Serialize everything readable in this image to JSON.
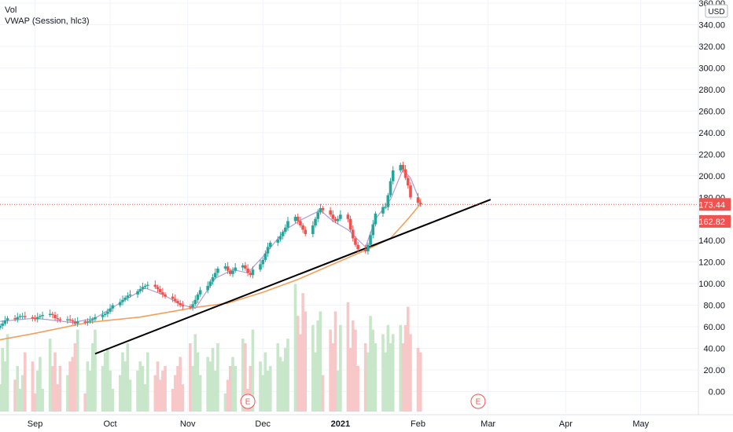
{
  "legend": {
    "volume_label": "Vol",
    "vwap_label": "VWAP (Session, hlc3)"
  },
  "colors": {
    "up": "#26a69a",
    "down": "#ef5350",
    "vol_up": "#c8e6c9",
    "vol_down": "#f8c8c8",
    "vwap": "#b39ddb",
    "ma": "#f5a05a",
    "trendline": "#000000",
    "price_line": "#ef5350",
    "grid": "#f0f3fa",
    "axis_text": "#131722"
  },
  "axis": {
    "currency": "USD",
    "y_ticks": [
      "0.00",
      "20.00",
      "40.00",
      "60.00",
      "80.00",
      "100.00",
      "120.00",
      "140.00",
      "160.00",
      "180.00",
      "200.00",
      "220.00",
      "240.00",
      "260.00",
      "280.00",
      "300.00",
      "320.00",
      "340.00",
      "360.00"
    ],
    "y_min": -20,
    "y_max": 360,
    "x_ticks": [
      "Sep",
      "Oct",
      "Nov",
      "Dec",
      "2021",
      "Feb",
      "Mar",
      "Apr",
      "May"
    ],
    "x_tick_bold": "2021",
    "x_range": [
      "2020-08-18",
      "2021-05-24"
    ]
  },
  "price_labels": [
    {
      "text": "173.44",
      "value": 173.44
    },
    {
      "text": "162.82",
      "value": 162.82
    }
  ],
  "earnings_markers": [
    {
      "label": "E",
      "date": "2020-11-25"
    },
    {
      "label": "E",
      "date": "2021-02-25"
    }
  ],
  "chart_data": {
    "type": "candlestick",
    "start_date": "2020-08-18",
    "closes": [
      61,
      63,
      66,
      68,
      67,
      69,
      70,
      70,
      69,
      68,
      67,
      69,
      70,
      71,
      72,
      71,
      68,
      67,
      66,
      67,
      66,
      65,
      63,
      65,
      64,
      65,
      66,
      67,
      69,
      71,
      72,
      74,
      77,
      80,
      83,
      85,
      87,
      89,
      90,
      93,
      95,
      97,
      98,
      99,
      97,
      95,
      92,
      90,
      88,
      86,
      84,
      82,
      80,
      79,
      78,
      81,
      85,
      90,
      94,
      98,
      102,
      106,
      110,
      114,
      116,
      112,
      109,
      112,
      115,
      117,
      114,
      110,
      108,
      113,
      118,
      122,
      128,
      134,
      138,
      141,
      144,
      148,
      152,
      158,
      162,
      158,
      154,
      150,
      146,
      154,
      160,
      166,
      170,
      168,
      164,
      160,
      158,
      160,
      164,
      160,
      150,
      142,
      136,
      132,
      130,
      136,
      145,
      155,
      165,
      171,
      171,
      182,
      195,
      205,
      210,
      206,
      198,
      191,
      180,
      175,
      173.44
    ]
  },
  "vwap_line": [
    [
      0,
      65
    ],
    [
      10,
      68
    ],
    [
      21,
      64
    ],
    [
      28,
      68
    ],
    [
      36,
      85
    ],
    [
      42,
      96
    ],
    [
      47,
      90
    ],
    [
      52,
      81
    ],
    [
      56,
      77
    ],
    [
      62,
      105
    ],
    [
      67,
      113
    ],
    [
      71,
      110
    ],
    [
      75,
      125
    ],
    [
      82,
      150
    ],
    [
      87,
      160
    ],
    [
      92,
      168
    ],
    [
      95,
      158
    ],
    [
      99,
      150
    ],
    [
      104,
      134
    ],
    [
      108,
      160
    ],
    [
      112,
      178
    ],
    [
      115,
      206
    ],
    [
      118,
      198
    ],
    [
      121,
      175
    ]
  ],
  "ma_line": [
    [
      0,
      48
    ],
    [
      10,
      54
    ],
    [
      25,
      64
    ],
    [
      40,
      69
    ],
    [
      56,
      78
    ],
    [
      65,
      82
    ],
    [
      75,
      92
    ],
    [
      85,
      104
    ],
    [
      95,
      118
    ],
    [
      105,
      132
    ],
    [
      112,
      142
    ],
    [
      117,
      160
    ],
    [
      122,
      174
    ],
    [
      125,
      179
    ]
  ],
  "trendline": [
    [
      "2020-09-25",
      35
    ],
    [
      "2021-03-02",
      178
    ]
  ],
  "volume_series": [
    12,
    28,
    22,
    34,
    14,
    20,
    10,
    16,
    26,
    22,
    8,
    18,
    24,
    10,
    32,
    20,
    26,
    12,
    20,
    16,
    22,
    24,
    30,
    36,
    8,
    22,
    18,
    30,
    36,
    20,
    26,
    28,
    18,
    10,
    16,
    26,
    22,
    30,
    14,
    18,
    22,
    20,
    12,
    26,
    16,
    22,
    14,
    18,
    20,
    10,
    16,
    20,
    24,
    12,
    30,
    20,
    34,
    26,
    16,
    24,
    22,
    28,
    18,
    30,
    8,
    14,
    20,
    24,
    20,
    32,
    30,
    10,
    20,
    36,
    22,
    16,
    26,
    18,
    20,
    30,
    24,
    22,
    28,
    32,
    56,
    42,
    34,
    52,
    44,
    38,
    26,
    40,
    44,
    16,
    36,
    30,
    44,
    18,
    38,
    48,
    28,
    40,
    36,
    20,
    30,
    26,
    42,
    36,
    30,
    34,
    26,
    38,
    30,
    34,
    38,
    30,
    38,
    46,
    34,
    28,
    26
  ]
}
